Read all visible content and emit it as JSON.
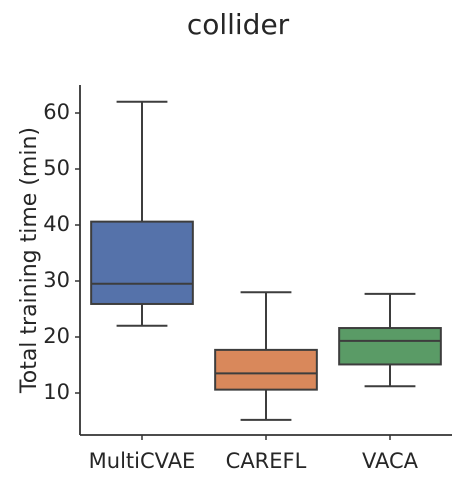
{
  "chart_data": {
    "type": "box",
    "title": "collider",
    "xlabel": "",
    "ylabel": "Total training time (min)",
    "ylim": [
      2.5,
      65
    ],
    "yticks": [
      10,
      20,
      30,
      40,
      50,
      60
    ],
    "grid": false,
    "categories": [
      "MultiCVAE",
      "CAREFL",
      "VACA"
    ],
    "colors": {
      "MultiCVAE": "#5572aa",
      "CAREFL": "#d9885b",
      "VACA": "#5a9b66"
    },
    "boxes": [
      {
        "category": "MultiCVAE",
        "whisker_low": 22.0,
        "q1": 25.9,
        "median": 29.5,
        "q3": 40.6,
        "whisker_high": 62.0
      },
      {
        "category": "CAREFL",
        "whisker_low": 5.2,
        "q1": 10.6,
        "median": 13.5,
        "q3": 17.7,
        "whisker_high": 28.0
      },
      {
        "category": "VACA",
        "whisker_low": 11.2,
        "q1": 15.1,
        "median": 19.3,
        "q3": 21.6,
        "whisker_high": 27.7
      }
    ]
  }
}
